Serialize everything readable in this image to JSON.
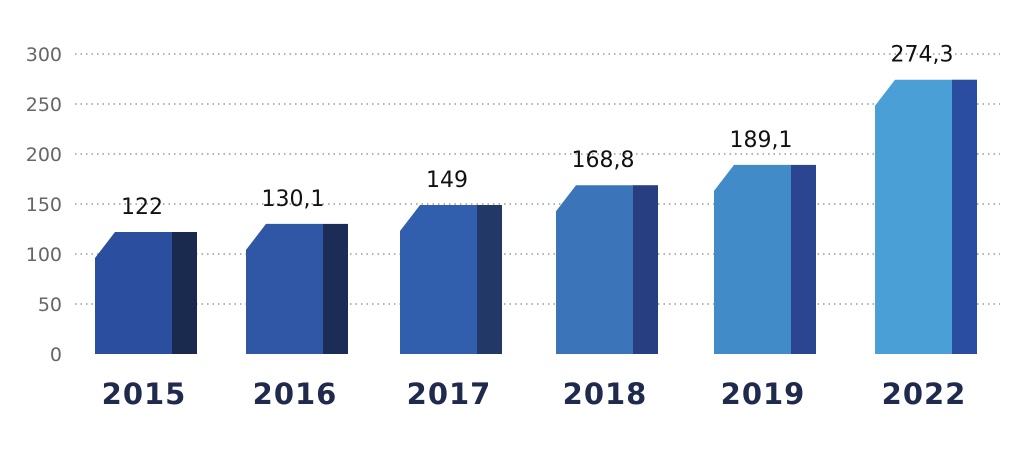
{
  "chart_data": {
    "type": "bar",
    "categories": [
      "2015",
      "2016",
      "2017",
      "2018",
      "2019",
      "2022"
    ],
    "values": [
      122,
      130.1,
      149,
      168.8,
      189.1,
      274.3
    ],
    "value_labels": [
      "122",
      "130,1",
      "149",
      "168,8",
      "189,1",
      "274,3"
    ],
    "title": "",
    "xlabel": "",
    "ylabel": "",
    "ylim": [
      0,
      300
    ],
    "yticks": [
      0,
      50,
      100,
      150,
      200,
      250,
      300
    ],
    "grid": true,
    "legend": "none",
    "colors": {
      "front": [
        "#2b4f9e",
        "#2f57a5",
        "#325fad",
        "#3b74b9",
        "#418bc8",
        "#4a9fd6"
      ],
      "side": [
        "#1a2a4f",
        "#1b2d56",
        "#223867",
        "#273f80",
        "#2b4590",
        "#2a4da1"
      ],
      "year_text": "#1f2a4d",
      "axis_text": "#666666"
    }
  }
}
